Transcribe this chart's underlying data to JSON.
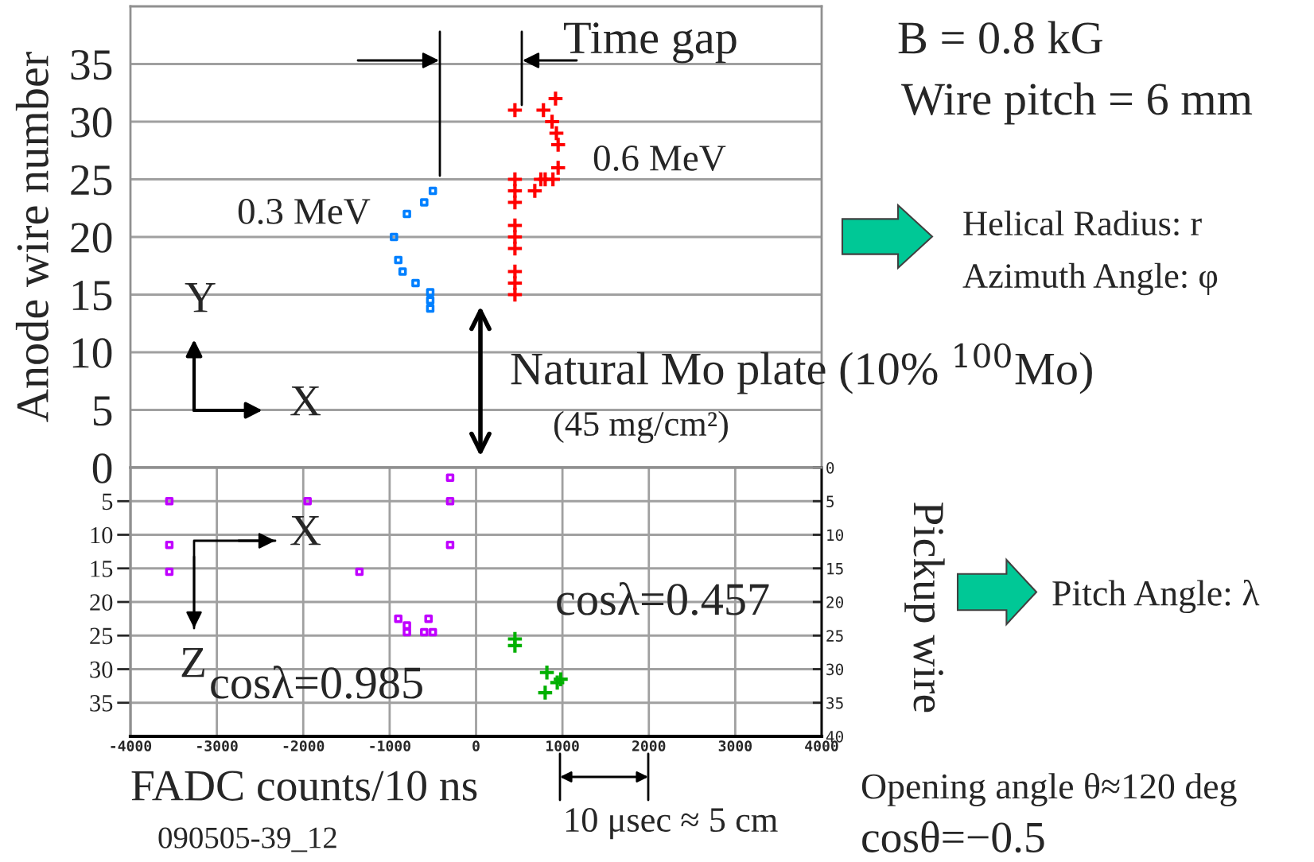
{
  "chart_data": [
    {
      "type": "scatter",
      "ylabel": "Anode wire number",
      "xlim": [
        -4000,
        4000
      ],
      "xticks": [
        -4000,
        -3000,
        -2000,
        -1000,
        0,
        1000,
        2000,
        3000,
        4000
      ],
      "ylim": [
        0,
        40
      ],
      "yticks": [
        0,
        5,
        10,
        15,
        20,
        25,
        30,
        35
      ],
      "tick_labels": "y",
      "grid": "y",
      "series": [
        {
          "name": "0.3 MeV",
          "color": "#0080ff",
          "marker": "square",
          "x": [
            -500,
            -600,
            -800,
            -950,
            -900,
            -850,
            -700,
            -530,
            -530,
            -530
          ],
          "values": [
            24,
            23,
            22,
            20,
            18,
            17,
            16,
            15.2,
            14.5,
            13.8
          ]
        },
        {
          "name": "0.6 MeV",
          "color": "#ff0000",
          "marker": "cross",
          "x": [
            450,
            450,
            450,
            450,
            450,
            450,
            450,
            450,
            450,
            450,
            780,
            920,
            880,
            930,
            950,
            950,
            890,
            800,
            750,
            680
          ],
          "values": [
            15,
            16,
            17,
            19,
            20,
            21,
            23,
            24,
            25,
            31,
            31,
            32,
            30,
            29,
            28,
            26,
            25,
            25,
            25,
            24
          ]
        }
      ],
      "annotations": [
        "Time gap",
        "B = 0.8 kG",
        "Wire pitch = 6 mm",
        "Helical Radius: r",
        "Azimuth Angle: φ",
        "Natural Mo plate (10% $^{100}$Mo)",
        "(45 mg/cm²)",
        "Y",
        "X"
      ]
    },
    {
      "type": "scatter",
      "xlabel": "FADC counts/10 ns",
      "y2label": "Pickup wire",
      "xlim": [
        -4000,
        4000
      ],
      "xticks": [
        -4000,
        -3000,
        -2000,
        -1000,
        0,
        1000,
        2000,
        3000,
        4000
      ],
      "ylim": [
        40,
        0
      ],
      "yticks": [
        5,
        10,
        15,
        20,
        25,
        30,
        35
      ],
      "y2lim": [
        40,
        0
      ],
      "y2ticks": [
        0,
        5,
        10,
        15,
        20,
        25,
        30,
        35,
        40
      ],
      "grid": true,
      "series": [
        {
          "color": "#c000ff",
          "marker": "square",
          "x": [
            -3550,
            -3550,
            -3550,
            -1950,
            -1350,
            -300,
            -300,
            -300,
            -900,
            -800,
            -800,
            -550,
            -600,
            -500
          ],
          "values": [
            5,
            11.5,
            15.5,
            5,
            15.5,
            1.5,
            5,
            11.5,
            22.5,
            23.5,
            24.5,
            22.5,
            24.5,
            24.5
          ]
        },
        {
          "color": "#00b000",
          "marker": "cross",
          "x": [
            450,
            450,
            820,
            800,
            940,
            980
          ],
          "values": [
            25.5,
            26.5,
            30.5,
            33.5,
            32,
            31.5
          ]
        }
      ],
      "annotations": [
        "X",
        "Z",
        "cosλ=0.985",
        "cosλ=0.457",
        "Pitch Angle: λ",
        "10 μsec ≈ 5 cm",
        "090505-39_12",
        "Opening angle θ≈120 deg",
        "cosθ=−0.5"
      ]
    }
  ]
}
